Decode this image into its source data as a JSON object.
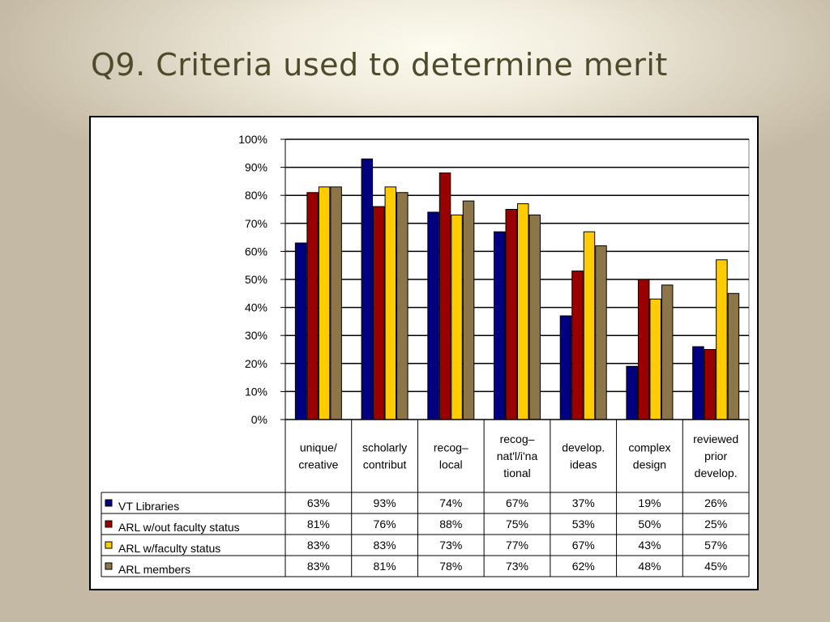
{
  "slide": {
    "title": "Q9. Criteria used to determine merit"
  },
  "chart_data": {
    "type": "bar",
    "y_ticks": [
      "0%",
      "10%",
      "20%",
      "30%",
      "40%",
      "50%",
      "60%",
      "70%",
      "80%",
      "90%",
      "100%"
    ],
    "ylim": [
      0,
      100
    ],
    "grid": true,
    "legend_placement": "data-table-left",
    "categories": [
      [
        "unique/",
        "creative"
      ],
      [
        "scholarly",
        "contribut"
      ],
      [
        "recog–",
        "local"
      ],
      [
        "recog–",
        "nat'l/i'na",
        "tional"
      ],
      [
        "develop.",
        "ideas"
      ],
      [
        "complex",
        "design"
      ],
      [
        "reviewed",
        "prior",
        "develop."
      ]
    ],
    "series": [
      {
        "name": "VT Libraries",
        "color": "#000080",
        "values": [
          63,
          93,
          74,
          67,
          37,
          19,
          26
        ],
        "labels": [
          "63%",
          "93%",
          "74%",
          "67%",
          "37%",
          "19%",
          "26%"
        ]
      },
      {
        "name": "ARL w/out faculty status",
        "color": "#990000",
        "values": [
          81,
          76,
          88,
          75,
          53,
          50,
          25
        ],
        "labels": [
          "81%",
          "76%",
          "88%",
          "75%",
          "53%",
          "50%",
          "25%"
        ]
      },
      {
        "name": "ARL w/faculty status",
        "color": "#ffcc00",
        "values": [
          83,
          83,
          73,
          77,
          67,
          43,
          57
        ],
        "labels": [
          "83%",
          "83%",
          "73%",
          "77%",
          "67%",
          "43%",
          "57%"
        ]
      },
      {
        "name": "ARL members",
        "color": "#8b7549",
        "values": [
          83,
          81,
          78,
          73,
          62,
          48,
          45
        ],
        "labels": [
          "83%",
          "81%",
          "78%",
          "73%",
          "62%",
          "48%",
          "45%"
        ]
      }
    ]
  }
}
